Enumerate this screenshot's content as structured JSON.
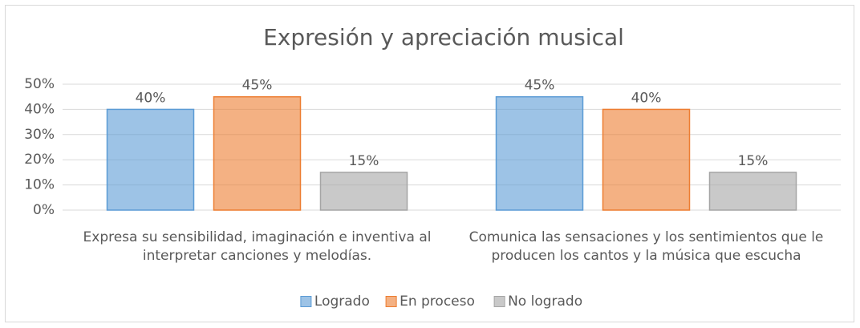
{
  "chart_data": {
    "type": "bar",
    "title": "Expresión y apreciación musical",
    "categories": [
      "Expresa su sensibilidad, imaginación  e inventiva al interpretar canciones  y melodías.",
      "Comunica las sensaciones y los sentimientos que le producen los cantos y la música que escucha"
    ],
    "series": [
      {
        "name": "Logrado",
        "color": "#5b9bd5",
        "values": [
          40,
          45
        ],
        "value_labels": [
          "40%",
          "45%"
        ]
      },
      {
        "name": "En proceso",
        "color": "#ed7d31",
        "values": [
          45,
          40
        ],
        "value_labels": [
          "45%",
          "40%"
        ]
      },
      {
        "name": "No logrado",
        "color": "#a5a5a5",
        "values": [
          15,
          15
        ],
        "value_labels": [
          "15%",
          "15%"
        ]
      }
    ],
    "ylim": [
      0,
      50
    ],
    "yticks": [
      {
        "value": 0,
        "label": "0%"
      },
      {
        "value": 10,
        "label": "10%"
      },
      {
        "value": 20,
        "label": "20%"
      },
      {
        "value": 30,
        "label": "30%"
      },
      {
        "value": 40,
        "label": "40%"
      },
      {
        "value": 50,
        "label": "50%"
      }
    ],
    "grid": true,
    "legend": "bottom"
  }
}
